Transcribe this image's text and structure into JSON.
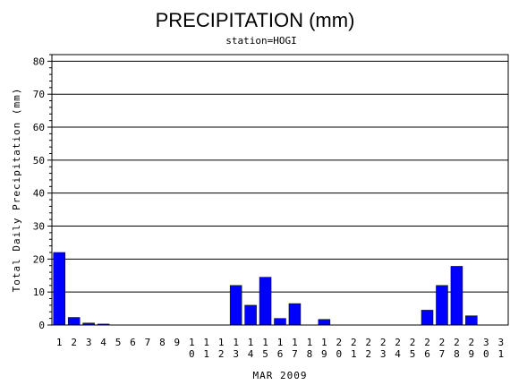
{
  "chart_data": {
    "type": "bar",
    "title": "PRECIPITATION (mm)",
    "subtitle": "station=HOGI",
    "xlabel": "MAR 2009",
    "ylabel": "Total Daily Precipitation (mm)",
    "ylim": [
      0,
      82
    ],
    "yticks": [
      0,
      10,
      20,
      30,
      40,
      50,
      60,
      70,
      80
    ],
    "grid": true,
    "categories": [
      "1",
      "2",
      "3",
      "4",
      "5",
      "6",
      "7",
      "8",
      "9",
      "10",
      "11",
      "12",
      "13",
      "14",
      "15",
      "16",
      "17",
      "18",
      "19",
      "20",
      "21",
      "22",
      "23",
      "24",
      "25",
      "26",
      "27",
      "28",
      "29",
      "30",
      "31"
    ],
    "values": [
      22,
      2.3,
      0.6,
      0.3,
      0,
      0,
      0,
      0,
      0,
      0,
      0,
      0,
      12,
      6,
      14.5,
      2,
      6.5,
      0,
      1.7,
      0,
      0,
      0,
      0,
      0,
      0,
      4.5,
      12,
      17.8,
      2.8,
      0,
      0
    ],
    "colors": {
      "bar": "#0000ff",
      "axis": "#000000",
      "grid": "#000000"
    }
  }
}
